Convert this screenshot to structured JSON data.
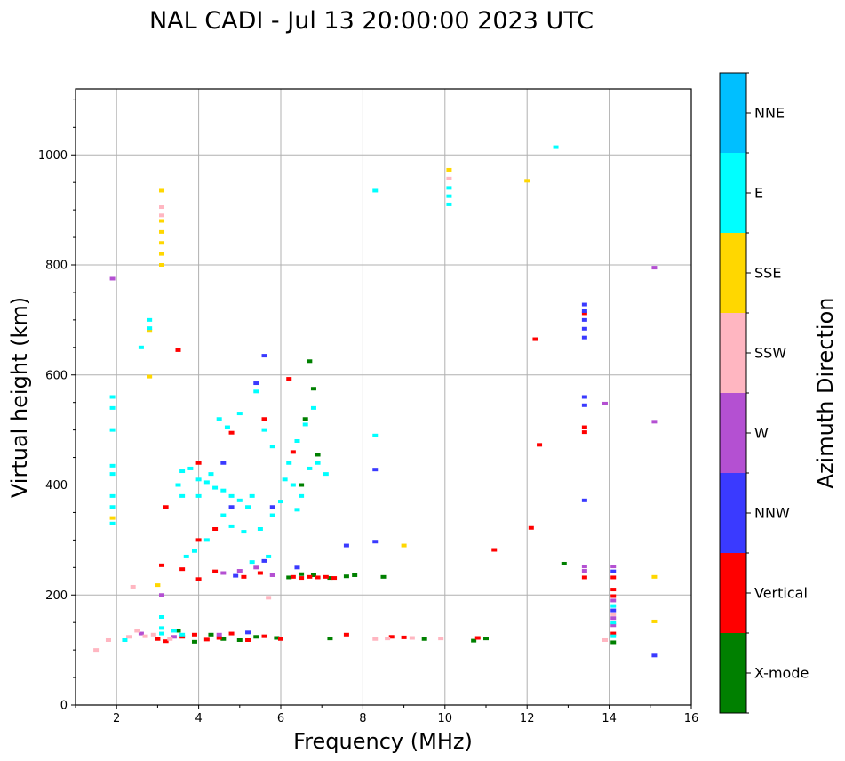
{
  "chart_data": {
    "type": "scatter",
    "title": "NAL CADI - Jul 13 20:00:00 2023 UTC",
    "xlabel": "Frequency (MHz)",
    "ylabel": "Virtual height (km)",
    "xlim": [
      1,
      16
    ],
    "ylim": [
      0,
      1120
    ],
    "x_ticks": [
      2,
      4,
      6,
      8,
      10,
      12,
      14,
      16
    ],
    "y_ticks": [
      0,
      200,
      400,
      600,
      800,
      1000
    ],
    "grid": true,
    "colorbar": {
      "label": "Azimuth Direction",
      "categories": [
        "X-mode",
        "Vertical",
        "NNW",
        "W",
        "SSW",
        "SSE",
        "E",
        "NNE"
      ],
      "colors": [
        "#008000",
        "#ff0000",
        "#3a3aff",
        "#b450d2",
        "#ffb6c1",
        "#ffd700",
        "#00ffff",
        "#00bfff"
      ]
    },
    "series": [
      {
        "name": "X-mode",
        "points": [
          [
            4.6,
            120
          ],
          [
            5.0,
            118
          ],
          [
            5.4,
            124
          ],
          [
            6.2,
            232
          ],
          [
            6.5,
            238
          ],
          [
            6.8,
            236
          ],
          [
            7.2,
            231
          ],
          [
            7.6,
            234
          ],
          [
            7.8,
            236
          ],
          [
            8.5,
            233
          ],
          [
            9.5,
            120
          ],
          [
            10.7,
            117
          ],
          [
            11.0,
            121
          ],
          [
            12.9,
            257
          ],
          [
            14.1,
            114
          ],
          [
            6.7,
            625
          ],
          [
            6.8,
            575
          ],
          [
            6.6,
            520
          ],
          [
            6.9,
            455
          ],
          [
            6.5,
            400
          ],
          [
            7.2,
            121
          ],
          [
            5.9,
            122
          ],
          [
            4.3,
            128
          ],
          [
            3.9,
            115
          ],
          [
            3.5,
            135
          ]
        ]
      },
      {
        "name": "Vertical",
        "points": [
          [
            3.0,
            120
          ],
          [
            3.2,
            116
          ],
          [
            3.6,
            124
          ],
          [
            3.9,
            128
          ],
          [
            4.2,
            119
          ],
          [
            4.5,
            122
          ],
          [
            4.8,
            130
          ],
          [
            5.2,
            118
          ],
          [
            5.6,
            125
          ],
          [
            6.0,
            120
          ],
          [
            6.3,
            233
          ],
          [
            6.5,
            231
          ],
          [
            6.7,
            233
          ],
          [
            6.9,
            232
          ],
          [
            7.1,
            233
          ],
          [
            7.3,
            231
          ],
          [
            5.5,
            240
          ],
          [
            5.1,
            233
          ],
          [
            4.4,
            243
          ],
          [
            4.0,
            229
          ],
          [
            3.6,
            247
          ],
          [
            3.1,
            254
          ],
          [
            4.0,
            300
          ],
          [
            4.4,
            320
          ],
          [
            4.0,
            440
          ],
          [
            4.8,
            495
          ],
          [
            6.2,
            593
          ],
          [
            3.5,
            645
          ],
          [
            5.6,
            520
          ],
          [
            6.3,
            460
          ],
          [
            7.6,
            128
          ],
          [
            8.7,
            124
          ],
          [
            9.0,
            123
          ],
          [
            10.8,
            122
          ],
          [
            11.2,
            282
          ],
          [
            12.2,
            665
          ],
          [
            12.1,
            322
          ],
          [
            12.3,
            473
          ],
          [
            13.4,
            712
          ],
          [
            13.4,
            505
          ],
          [
            13.4,
            496
          ],
          [
            13.4,
            232
          ],
          [
            14.1,
            232
          ],
          [
            14.1,
            210
          ],
          [
            14.1,
            198
          ],
          [
            14.1,
            130
          ],
          [
            3.2,
            360
          ]
        ]
      },
      {
        "name": "NNW",
        "points": [
          [
            5.4,
            585
          ],
          [
            5.6,
            635
          ],
          [
            4.6,
            440
          ],
          [
            5.8,
            360
          ],
          [
            6.4,
            250
          ],
          [
            5.6,
            262
          ],
          [
            4.8,
            360
          ],
          [
            7.6,
            290
          ],
          [
            8.3,
            297
          ],
          [
            8.3,
            428
          ],
          [
            13.4,
            560
          ],
          [
            13.4,
            545
          ],
          [
            13.4,
            372
          ],
          [
            13.4,
            728
          ],
          [
            13.4,
            716
          ],
          [
            13.4,
            700
          ],
          [
            13.4,
            684
          ],
          [
            13.4,
            668
          ],
          [
            14.1,
            243
          ],
          [
            14.1,
            172
          ],
          [
            15.1,
            90
          ],
          [
            4.9,
            235
          ],
          [
            5.2,
            132
          ]
        ]
      },
      {
        "name": "W",
        "points": [
          [
            2.6,
            130
          ],
          [
            3.4,
            124
          ],
          [
            4.6,
            240
          ],
          [
            5.0,
            244
          ],
          [
            5.4,
            250
          ],
          [
            5.8,
            236
          ],
          [
            4.5,
            128
          ],
          [
            1.9,
            775
          ],
          [
            13.4,
            252
          ],
          [
            13.4,
            244
          ],
          [
            13.9,
            548
          ],
          [
            15.1,
            795
          ],
          [
            15.1,
            515
          ],
          [
            14.1,
            252
          ],
          [
            14.1,
            190
          ],
          [
            14.1,
            158
          ],
          [
            14.1,
            145
          ],
          [
            3.1,
            200
          ]
        ]
      },
      {
        "name": "SSW",
        "points": [
          [
            1.5,
            100
          ],
          [
            1.8,
            118
          ],
          [
            2.3,
            124
          ],
          [
            2.5,
            135
          ],
          [
            2.7,
            125
          ],
          [
            3.3,
            120
          ],
          [
            2.4,
            215
          ],
          [
            2.9,
            128
          ],
          [
            8.3,
            120
          ],
          [
            8.6,
            121
          ],
          [
            9.2,
            122
          ],
          [
            9.9,
            121
          ],
          [
            3.1,
            905
          ],
          [
            10.1,
            957
          ],
          [
            13.9,
            118
          ],
          [
            14.1,
            165
          ],
          [
            5.7,
            195
          ],
          [
            3.1,
            890
          ]
        ]
      },
      {
        "name": "SSE",
        "points": [
          [
            3.1,
            935
          ],
          [
            3.1,
            880
          ],
          [
            3.1,
            860
          ],
          [
            3.1,
            840
          ],
          [
            3.1,
            820
          ],
          [
            3.1,
            800
          ],
          [
            2.8,
            680
          ],
          [
            2.8,
            597
          ],
          [
            1.9,
            340
          ],
          [
            10.1,
            973
          ],
          [
            9.0,
            290
          ],
          [
            12.0,
            953
          ],
          [
            15.1,
            233
          ],
          [
            15.1,
            152
          ],
          [
            3.0,
            218
          ]
        ]
      },
      {
        "name": "E",
        "points": [
          [
            1.9,
            560
          ],
          [
            1.9,
            540
          ],
          [
            1.9,
            500
          ],
          [
            1.9,
            435
          ],
          [
            1.9,
            420
          ],
          [
            1.9,
            380
          ],
          [
            1.9,
            360
          ],
          [
            1.9,
            330
          ],
          [
            2.8,
            700
          ],
          [
            2.8,
            685
          ],
          [
            2.6,
            650
          ],
          [
            3.1,
            140
          ],
          [
            3.1,
            160
          ],
          [
            3.1,
            130
          ],
          [
            3.4,
            135
          ],
          [
            3.6,
            128
          ],
          [
            4.0,
            410
          ],
          [
            4.2,
            405
          ],
          [
            4.4,
            395
          ],
          [
            4.6,
            390
          ],
          [
            4.3,
            420
          ],
          [
            3.8,
            430
          ],
          [
            3.6,
            425
          ],
          [
            3.5,
            400
          ],
          [
            3.6,
            380
          ],
          [
            4.0,
            380
          ],
          [
            4.8,
            380
          ],
          [
            5.0,
            372
          ],
          [
            5.2,
            360
          ],
          [
            5.3,
            380
          ],
          [
            4.6,
            345
          ],
          [
            4.8,
            325
          ],
          [
            5.1,
            315
          ],
          [
            5.5,
            320
          ],
          [
            5.8,
            345
          ],
          [
            6.0,
            370
          ],
          [
            6.1,
            410
          ],
          [
            6.2,
            440
          ],
          [
            6.4,
            480
          ],
          [
            6.6,
            510
          ],
          [
            6.8,
            540
          ],
          [
            6.7,
            430
          ],
          [
            6.9,
            440
          ],
          [
            7.1,
            420
          ],
          [
            6.5,
            380
          ],
          [
            5.7,
            270
          ],
          [
            5.3,
            260
          ],
          [
            3.9,
            280
          ],
          [
            3.7,
            270
          ],
          [
            4.5,
            520
          ],
          [
            4.7,
            505
          ],
          [
            5.0,
            530
          ],
          [
            5.4,
            570
          ],
          [
            5.6,
            500
          ],
          [
            5.8,
            470
          ],
          [
            4.2,
            300
          ],
          [
            8.3,
            490
          ],
          [
            8.3,
            935
          ],
          [
            10.1,
            940
          ],
          [
            10.1,
            925
          ],
          [
            10.1,
            910
          ],
          [
            12.7,
            1014
          ],
          [
            14.1,
            180
          ],
          [
            14.1,
            150
          ],
          [
            14.1,
            125
          ],
          [
            2.2,
            118
          ],
          [
            6.3,
            400
          ],
          [
            6.4,
            355
          ]
        ]
      }
    ]
  }
}
